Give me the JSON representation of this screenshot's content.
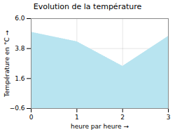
{
  "chart_data": {
    "type": "area",
    "title": "Evolution de la température",
    "xlabel": "heure par heure",
    "ylabel": "Température en °C",
    "x": [
      0,
      1,
      2,
      3
    ],
    "values": [
      5.0,
      4.3,
      2.5,
      4.7
    ],
    "xlim": [
      0,
      3
    ],
    "ylim": [
      -0.6,
      6.0
    ],
    "xticks": [
      0,
      1,
      2,
      3
    ],
    "yticks": [
      -0.6,
      1.6,
      3.8,
      {
        "value": 6.0,
        "label": "6.0"
      }
    ],
    "color": "#b8e4f0",
    "line_style": "dotted",
    "grid": true
  }
}
